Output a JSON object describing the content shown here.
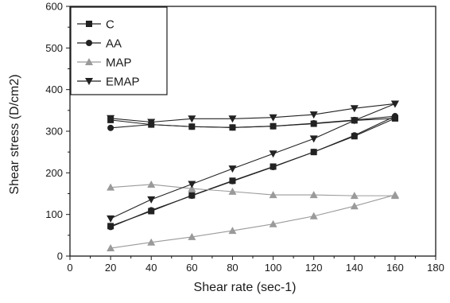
{
  "chart_data": {
    "type": "line",
    "title": "",
    "xlabel": "Shear rate (sec-1)",
    "ylabel": "Shear stress (D/cm2)",
    "xlim": [
      0,
      180
    ],
    "ylim": [
      0,
      600
    ],
    "xticks": [
      0,
      20,
      40,
      60,
      80,
      100,
      120,
      140,
      160,
      180
    ],
    "yticks": [
      0,
      100,
      200,
      300,
      400,
      500,
      600
    ],
    "grid": false,
    "legend_position": "top-left",
    "series": [
      {
        "name": "C",
        "marker": "square",
        "color": "#222222",
        "curves": [
          {
            "x": [
              20,
              40,
              60,
              80,
              100,
              120,
              140,
              160
            ],
            "y": [
              327,
              316,
              311,
              309,
              312,
              318,
              326,
              331
            ]
          },
          {
            "x": [
              20,
              40,
              60,
              80,
              100,
              120,
              140,
              160
            ],
            "y": [
              72,
              108,
              146,
              181,
              215,
              250,
              288,
              331
            ]
          }
        ]
      },
      {
        "name": "AA",
        "marker": "circle",
        "color": "#222222",
        "curves": [
          {
            "x": [
              20,
              40,
              60,
              80,
              100,
              120,
              140,
              160
            ],
            "y": [
              308,
              316,
              311,
              309,
              312,
              319,
              327,
              336
            ]
          },
          {
            "x": [
              20,
              40,
              60,
              80,
              100,
              120,
              140,
              160
            ],
            "y": [
              70,
              110,
              145,
              180,
              214,
              250,
              290,
              336
            ]
          }
        ]
      },
      {
        "name": "MAP",
        "marker": "triangle-up",
        "color": "#9a9a9a",
        "curves": [
          {
            "x": [
              20,
              40,
              60,
              80,
              100,
              120,
              140,
              160
            ],
            "y": [
              165,
              172,
              162,
              155,
              147,
              147,
              145,
              145
            ]
          },
          {
            "x": [
              20,
              40,
              60,
              80,
              100,
              120,
              140,
              160
            ],
            "y": [
              19,
              33,
              46,
              61,
              77,
              96,
              120,
              147
            ]
          }
        ]
      },
      {
        "name": "EMAP",
        "marker": "triangle-down",
        "color": "#222222",
        "curves": [
          {
            "x": [
              20,
              40,
              60,
              80,
              100,
              120,
              140,
              160
            ],
            "y": [
              331,
              322,
              330,
              330,
              333,
              340,
              355,
              366
            ]
          },
          {
            "x": [
              20,
              40,
              60,
              80,
              100,
              120,
              140,
              160
            ],
            "y": [
              90,
              136,
              173,
              210,
              246,
              282,
              326,
              366
            ]
          }
        ]
      }
    ]
  }
}
